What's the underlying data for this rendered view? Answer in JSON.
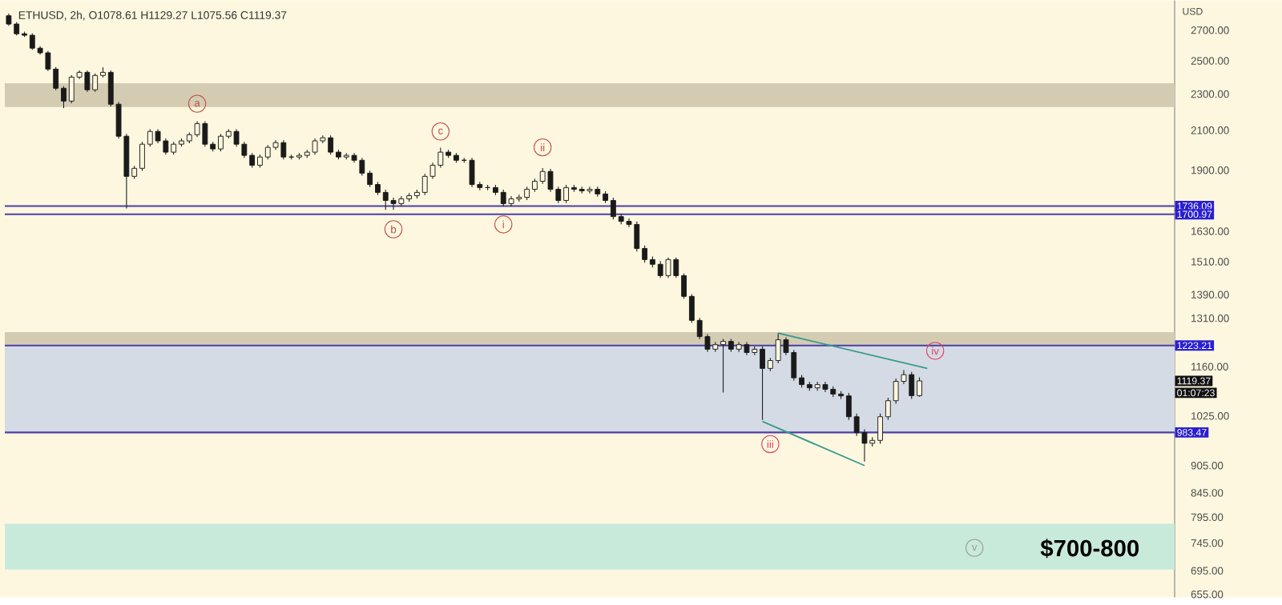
{
  "chart_data": {
    "type": "candlestick",
    "title": "ETHUSD, 2h,  O1078.61  H1129.27  L1075.56  C1119.37",
    "ylabel": "USD",
    "log": "y",
    "tick_labels": "y",
    "color": "#1a1a1a",
    "categories": [
      null,
      null,
      null,
      null,
      null,
      null,
      null,
      null,
      null,
      null,
      null,
      null,
      null,
      null,
      null,
      null,
      null,
      null,
      null,
      null,
      null,
      null,
      null,
      null,
      null,
      null,
      null,
      null,
      null,
      null,
      null,
      null,
      null,
      null,
      null,
      null,
      null,
      null,
      null,
      null,
      null,
      null,
      null,
      null,
      null,
      null,
      null,
      null,
      null,
      null,
      null,
      null,
      null,
      null,
      null,
      null,
      null,
      null,
      null,
      null,
      null,
      null,
      null,
      null,
      null,
      null,
      null,
      null,
      null,
      null,
      null,
      null,
      null,
      null,
      null,
      null,
      null,
      null,
      null,
      null,
      null,
      null,
      null,
      null,
      null,
      null,
      null,
      null,
      null,
      null,
      null,
      null,
      null,
      null,
      null,
      null,
      null,
      null,
      null,
      null,
      null,
      null,
      null,
      null,
      null,
      null,
      null,
      null,
      null,
      null,
      null,
      null,
      null,
      null,
      null,
      null,
      null,
      null,
      null,
      null,
      null,
      null,
      null,
      null,
      null,
      null,
      null,
      null,
      null,
      null,
      null,
      null,
      null,
      null,
      null,
      null,
      null,
      null,
      null,
      null,
      null,
      null,
      null,
      null,
      null,
      null,
      null,
      null,
      null
    ],
    "ohlc": [
      [
        2800,
        2815,
        2730,
        2742
      ],
      [
        2742,
        2755,
        2665,
        2676
      ],
      [
        2676,
        2690,
        2655,
        2666
      ],
      [
        2666,
        2678,
        2570,
        2581
      ],
      [
        2581,
        2593,
        2540,
        2551
      ],
      [
        2551,
        2563,
        2437,
        2449
      ],
      [
        2449,
        2461,
        2322,
        2334
      ],
      [
        2334,
        2346,
        2220,
        2260
      ],
      [
        2260,
        2412,
        2248,
        2400
      ],
      [
        2400,
        2441,
        2388,
        2429
      ],
      [
        2429,
        2441,
        2313,
        2325
      ],
      [
        2325,
        2422,
        2313,
        2410
      ],
      [
        2410,
        2460,
        2398,
        2429
      ],
      [
        2429,
        2441,
        2230,
        2242
      ],
      [
        2242,
        2254,
        2057,
        2069
      ],
      [
        2069,
        2081,
        1726,
        1871
      ],
      [
        1871,
        1921,
        1859,
        1909
      ],
      [
        1909,
        2040,
        1897,
        2028
      ],
      [
        2028,
        2106,
        2016,
        2094
      ],
      [
        2094,
        2106,
        2033,
        2045
      ],
      [
        2045,
        2057,
        1976,
        1988
      ],
      [
        1988,
        2040,
        1976,
        2028
      ],
      [
        2028,
        2057,
        2016,
        2045
      ],
      [
        2045,
        2089,
        2033,
        2077
      ],
      [
        2077,
        2148,
        2065,
        2136
      ],
      [
        2136,
        2148,
        2016,
        2028
      ],
      [
        2028,
        2040,
        1992,
        2004
      ],
      [
        2004,
        2081,
        1992,
        2069
      ],
      [
        2069,
        2106,
        2057,
        2094
      ],
      [
        2094,
        2106,
        2016,
        2028
      ],
      [
        2028,
        2040,
        1960,
        1972
      ],
      [
        1972,
        1984,
        1912,
        1924
      ],
      [
        1924,
        1976,
        1912,
        1964
      ],
      [
        1964,
        2024,
        1952,
        2012
      ],
      [
        2012,
        2048,
        2000,
        2036
      ],
      [
        2036,
        2048,
        1952,
        1964
      ],
      [
        1964,
        1976,
        1952,
        1964
      ],
      [
        1964,
        1984,
        1952,
        1972
      ],
      [
        1972,
        2000,
        1960,
        1988
      ],
      [
        1988,
        2057,
        1976,
        2045
      ],
      [
        2045,
        2073,
        2033,
        2061
      ],
      [
        2061,
        2073,
        1976,
        1988
      ],
      [
        1988,
        2000,
        1952,
        1964
      ],
      [
        1964,
        1984,
        1952,
        1972
      ],
      [
        1972,
        1984,
        1936,
        1948
      ],
      [
        1948,
        1960,
        1874,
        1886
      ],
      [
        1886,
        1898,
        1821,
        1833
      ],
      [
        1833,
        1845,
        1785,
        1797
      ],
      [
        1797,
        1809,
        1720,
        1761
      ],
      [
        1761,
        1773,
        1720,
        1747
      ],
      [
        1747,
        1780,
        1735,
        1768
      ],
      [
        1768,
        1794,
        1756,
        1782
      ],
      [
        1782,
        1809,
        1770,
        1797
      ],
      [
        1797,
        1883,
        1785,
        1871
      ],
      [
        1871,
        1936,
        1859,
        1924
      ],
      [
        1924,
        2010,
        1912,
        1988
      ],
      [
        1988,
        2000,
        1960,
        1972
      ],
      [
        1972,
        1984,
        1936,
        1948
      ],
      [
        1948,
        1960,
        1936,
        1948
      ],
      [
        1948,
        1960,
        1821,
        1833
      ],
      [
        1833,
        1845,
        1807,
        1819
      ],
      [
        1819,
        1831,
        1807,
        1819
      ],
      [
        1819,
        1831,
        1785,
        1797
      ],
      [
        1797,
        1809,
        1735,
        1747
      ],
      [
        1747,
        1780,
        1735,
        1768
      ],
      [
        1768,
        1787,
        1756,
        1775
      ],
      [
        1775,
        1823,
        1763,
        1811
      ],
      [
        1811,
        1860,
        1799,
        1848
      ],
      [
        1848,
        1910,
        1836,
        1894
      ],
      [
        1894,
        1906,
        1799,
        1811
      ],
      [
        1811,
        1823,
        1749,
        1761
      ],
      [
        1761,
        1831,
        1749,
        1819
      ],
      [
        1819,
        1831,
        1799,
        1811
      ],
      [
        1811,
        1823,
        1792,
        1804
      ],
      [
        1804,
        1823,
        1792,
        1811
      ],
      [
        1811,
        1823,
        1778,
        1790
      ],
      [
        1790,
        1802,
        1749,
        1761
      ],
      [
        1761,
        1773,
        1679,
        1691
      ],
      [
        1691,
        1703,
        1659,
        1671
      ],
      [
        1671,
        1683,
        1646,
        1658
      ],
      [
        1658,
        1670,
        1549,
        1561
      ],
      [
        1561,
        1573,
        1506,
        1518
      ],
      [
        1518,
        1530,
        1488,
        1500
      ],
      [
        1500,
        1512,
        1450,
        1458
      ],
      [
        1458,
        1526,
        1450,
        1518
      ],
      [
        1518,
        1526,
        1450,
        1458
      ],
      [
        1458,
        1466,
        1376,
        1384
      ],
      [
        1384,
        1392,
        1295,
        1303
      ],
      [
        1303,
        1311,
        1243,
        1251
      ],
      [
        1251,
        1259,
        1204,
        1212
      ],
      [
        1212,
        1234,
        1204,
        1226
      ],
      [
        1226,
        1244,
        1087,
        1236
      ],
      [
        1236,
        1244,
        1204,
        1212
      ],
      [
        1212,
        1234,
        1204,
        1226
      ],
      [
        1226,
        1234,
        1194,
        1202
      ],
      [
        1202,
        1220,
        1194,
        1212
      ],
      [
        1212,
        1220,
        1015,
        1155
      ],
      [
        1155,
        1186,
        1147,
        1178
      ],
      [
        1178,
        1262,
        1170,
        1241
      ],
      [
        1241,
        1249,
        1194,
        1202
      ],
      [
        1202,
        1210,
        1120,
        1128
      ],
      [
        1128,
        1136,
        1101,
        1109
      ],
      [
        1109,
        1117,
        1092,
        1100
      ],
      [
        1100,
        1117,
        1092,
        1109
      ],
      [
        1109,
        1117,
        1088,
        1096
      ],
      [
        1096,
        1104,
        1075,
        1083
      ],
      [
        1083,
        1091,
        1070,
        1078
      ],
      [
        1078,
        1086,
        1015,
        1023
      ],
      [
        1023,
        1031,
        975,
        983
      ],
      [
        983,
        991,
        914,
        957
      ],
      [
        957,
        972,
        949,
        964
      ],
      [
        964,
        1031,
        956,
        1023
      ],
      [
        1023,
        1073,
        1015,
        1065
      ],
      [
        1065,
        1126,
        1057,
        1118
      ],
      [
        1118,
        1150,
        1110,
        1137
      ],
      [
        1137,
        1145,
        1070,
        1078.61
      ],
      [
        1078.61,
        1129.27,
        1075.56,
        1119.37
      ],
      null,
      null,
      null,
      null,
      null,
      null,
      null,
      null,
      null,
      null,
      null,
      null,
      null,
      null,
      null,
      null,
      null,
      null,
      null,
      null,
      null,
      null,
      null,
      null,
      null,
      null,
      null,
      null,
      null,
      null,
      null,
      null
    ],
    "series": [
      {
        "type": "line",
        "color": "#3a9a8c",
        "values": [
          null,
          null,
          null,
          null,
          null,
          null,
          null,
          null,
          null,
          null,
          null,
          null,
          null,
          null,
          null,
          null,
          null,
          null,
          null,
          null,
          null,
          null,
          null,
          null,
          null,
          null,
          null,
          null,
          null,
          null,
          null,
          null,
          null,
          null,
          null,
          null,
          null,
          null,
          null,
          null,
          null,
          null,
          null,
          null,
          null,
          null,
          null,
          null,
          null,
          null,
          null,
          null,
          null,
          null,
          null,
          null,
          null,
          null,
          null,
          null,
          null,
          null,
          null,
          null,
          null,
          null,
          null,
          null,
          null,
          null,
          null,
          null,
          null,
          null,
          null,
          null,
          null,
          null,
          null,
          null,
          null,
          null,
          null,
          null,
          null,
          null,
          null,
          null,
          null,
          null,
          null,
          null,
          null,
          null,
          null,
          null,
          null,
          null,
          1262,
          null,
          null,
          null,
          null,
          null,
          null,
          null,
          null,
          null,
          null,
          null,
          null,
          null,
          null,
          null,
          null,
          null,
          null,
          1155,
          null,
          null,
          null,
          null,
          null,
          null,
          null,
          null,
          null,
          null,
          null,
          null,
          null,
          null,
          null,
          null,
          null,
          null,
          null,
          null,
          null,
          null,
          null,
          null,
          null,
          null,
          null,
          null,
          null,
          null,
          null
        ]
      },
      {
        "type": "line",
        "color": "#3a9a8c",
        "values": [
          null,
          null,
          null,
          null,
          null,
          null,
          null,
          null,
          null,
          null,
          null,
          null,
          null,
          null,
          null,
          null,
          null,
          null,
          null,
          null,
          null,
          null,
          null,
          null,
          null,
          null,
          null,
          null,
          null,
          null,
          null,
          null,
          null,
          null,
          null,
          null,
          null,
          null,
          null,
          null,
          null,
          null,
          null,
          null,
          null,
          null,
          null,
          null,
          null,
          null,
          null,
          null,
          null,
          null,
          null,
          null,
          null,
          null,
          null,
          null,
          null,
          null,
          null,
          null,
          null,
          null,
          null,
          null,
          null,
          null,
          null,
          null,
          null,
          null,
          null,
          null,
          null,
          null,
          null,
          null,
          null,
          null,
          null,
          null,
          null,
          null,
          null,
          null,
          null,
          null,
          null,
          null,
          null,
          null,
          null,
          null,
          1011,
          null,
          null,
          null,
          null,
          null,
          null,
          null,
          null,
          null,
          null,
          null,
          null,
          905,
          null,
          null,
          null,
          null,
          null,
          null,
          null,
          null,
          null,
          null,
          null,
          null,
          null,
          null,
          null,
          null,
          null,
          null,
          null,
          null,
          null,
          null,
          null,
          null,
          null,
          null,
          null,
          null,
          null,
          null,
          null,
          null,
          null,
          null,
          null,
          null,
          null,
          null,
          null
        ]
      }
    ],
    "ylim": [
      650,
      2910
    ],
    "yticks": [
      {
        "value": 655,
        "label": "655.00"
      },
      {
        "value": 695,
        "label": "695.00"
      },
      {
        "value": 745,
        "label": "745.00"
      },
      {
        "value": 795,
        "label": "795.00"
      },
      {
        "value": 845,
        "label": "845.00"
      },
      {
        "value": 905,
        "label": "905.00"
      },
      {
        "value": 1025,
        "label": "1025.00"
      },
      {
        "value": 1160,
        "label": "1160.00"
      },
      {
        "value": 1310,
        "label": "1310.00"
      },
      {
        "value": 1390,
        "label": "1390.00"
      },
      {
        "value": 1510,
        "label": "1510.00"
      },
      {
        "value": 1630,
        "label": "1630.00"
      },
      {
        "value": 1900,
        "label": "1900.00"
      },
      {
        "value": 2100,
        "label": "2100.00"
      },
      {
        "value": 2300,
        "label": "2300.00"
      },
      {
        "value": 2500,
        "label": "2500.00"
      },
      {
        "value": 2700,
        "label": "2700.00"
      }
    ],
    "ref_lines": [
      {
        "axis": "y",
        "value": 1736.09,
        "label": "1736.09",
        "color": "#4b3fa6"
      },
      {
        "axis": "y",
        "value": 1700.97,
        "label": "1700.97",
        "color": "#4b3fa6"
      },
      {
        "axis": "y",
        "value": 1223.21,
        "label": "1223.21",
        "color": "#4b3fa6"
      },
      {
        "axis": "y",
        "value": 983.47,
        "label": "983.47",
        "color": "#4b3fa6"
      }
    ],
    "bands": [
      {
        "axis": "y",
        "from": 2226,
        "to": 2363,
        "color": "#d3ccb3"
      },
      {
        "axis": "y",
        "from": 983.47,
        "to": 1223.21,
        "color": "#d5dbe4"
      },
      {
        "axis": "y",
        "from": 1223.21,
        "to": 1265,
        "color": "#d3ccb3"
      },
      {
        "axis": "y",
        "from": 697,
        "to": 782,
        "color": "#c8eadb"
      }
    ],
    "annotations": [
      "a",
      "b",
      "c",
      "i",
      "ii",
      "iii",
      "iv",
      "v",
      "$700-800",
      "1119.37",
      "01:07:23"
    ]
  }
}
